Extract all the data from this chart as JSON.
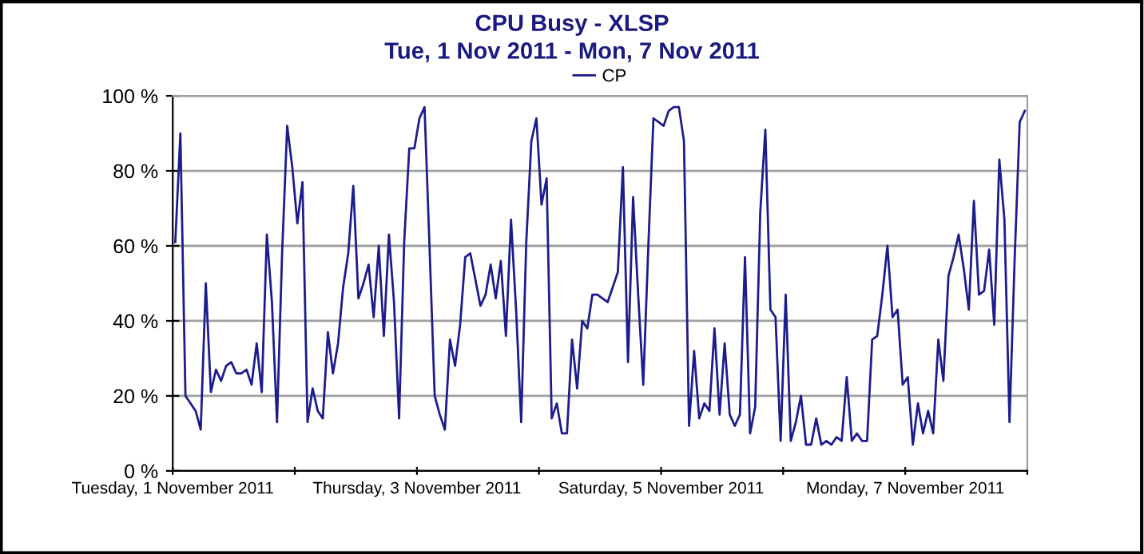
{
  "chart_data": {
    "type": "line",
    "title": "CPU Busy - XLSP",
    "subtitle": "Tue, 1 Nov 2011 - Mon, 7 Nov 2011",
    "x": [
      "2011-11-01T00:30",
      "2011-11-01T01:30",
      "2011-11-01T02:30",
      "2011-11-01T03:30",
      "2011-11-01T04:30",
      "2011-11-01T05:30",
      "2011-11-01T06:30",
      "2011-11-01T07:30",
      "2011-11-01T08:30",
      "2011-11-01T09:30",
      "2011-11-01T10:30",
      "2011-11-01T11:30",
      "2011-11-01T12:30",
      "2011-11-01T13:30",
      "2011-11-01T14:30",
      "2011-11-01T15:30",
      "2011-11-01T16:30",
      "2011-11-01T17:30",
      "2011-11-01T18:30",
      "2011-11-01T19:30",
      "2011-11-01T20:30",
      "2011-11-01T21:30",
      "2011-11-01T22:30",
      "2011-11-01T23:30",
      "2011-11-02T00:30",
      "2011-11-02T01:30",
      "2011-11-02T02:30",
      "2011-11-02T03:30",
      "2011-11-02T04:30",
      "2011-11-02T05:30",
      "2011-11-02T06:30",
      "2011-11-02T07:30",
      "2011-11-02T08:30",
      "2011-11-02T09:30",
      "2011-11-02T10:30",
      "2011-11-02T11:30",
      "2011-11-02T12:30",
      "2011-11-02T13:30",
      "2011-11-02T14:30",
      "2011-11-02T15:30",
      "2011-11-02T16:30",
      "2011-11-02T17:30",
      "2011-11-02T18:30",
      "2011-11-02T19:30",
      "2011-11-02T20:30",
      "2011-11-02T21:30",
      "2011-11-02T22:30",
      "2011-11-02T23:30",
      "2011-11-03T00:30",
      "2011-11-03T01:30",
      "2011-11-03T02:30",
      "2011-11-03T03:30",
      "2011-11-03T04:30",
      "2011-11-03T05:30",
      "2011-11-03T06:30",
      "2011-11-03T07:30",
      "2011-11-03T08:30",
      "2011-11-03T09:30",
      "2011-11-03T10:30",
      "2011-11-03T11:30",
      "2011-11-03T12:30",
      "2011-11-03T13:30",
      "2011-11-03T14:30",
      "2011-11-03T15:30",
      "2011-11-03T16:30",
      "2011-11-03T17:30",
      "2011-11-03T18:30",
      "2011-11-03T19:30",
      "2011-11-03T20:30",
      "2011-11-03T21:30",
      "2011-11-03T22:30",
      "2011-11-03T23:30",
      "2011-11-04T00:30",
      "2011-11-04T01:30",
      "2011-11-04T02:30",
      "2011-11-04T03:30",
      "2011-11-04T04:30",
      "2011-11-04T05:30",
      "2011-11-04T06:30",
      "2011-11-04T07:30",
      "2011-11-04T08:30",
      "2011-11-04T09:30",
      "2011-11-04T10:30",
      "2011-11-04T11:30",
      "2011-11-04T12:30",
      "2011-11-04T13:30",
      "2011-11-04T14:30",
      "2011-11-04T15:30",
      "2011-11-04T16:30",
      "2011-11-04T17:30",
      "2011-11-04T18:30",
      "2011-11-04T19:30",
      "2011-11-04T20:30",
      "2011-11-04T21:30",
      "2011-11-04T22:30",
      "2011-11-04T23:30",
      "2011-11-05T00:30",
      "2011-11-05T01:30",
      "2011-11-05T02:30",
      "2011-11-05T03:30",
      "2011-11-05T04:30",
      "2011-11-05T05:30",
      "2011-11-05T06:30",
      "2011-11-05T07:30",
      "2011-11-05T08:30",
      "2011-11-05T09:30",
      "2011-11-05T10:30",
      "2011-11-05T11:30",
      "2011-11-05T12:30",
      "2011-11-05T13:30",
      "2011-11-05T14:30",
      "2011-11-05T15:30",
      "2011-11-05T16:30",
      "2011-11-05T17:30",
      "2011-11-05T18:30",
      "2011-11-05T19:30",
      "2011-11-05T20:30",
      "2011-11-05T21:30",
      "2011-11-05T22:30",
      "2011-11-05T23:30",
      "2011-11-06T00:30",
      "2011-11-06T01:30",
      "2011-11-06T02:30",
      "2011-11-06T03:30",
      "2011-11-06T04:30",
      "2011-11-06T05:30",
      "2011-11-06T06:30",
      "2011-11-06T07:30",
      "2011-11-06T08:30",
      "2011-11-06T09:30",
      "2011-11-06T10:30",
      "2011-11-06T11:30",
      "2011-11-06T12:30",
      "2011-11-06T13:30",
      "2011-11-06T14:30",
      "2011-11-06T15:30",
      "2011-11-06T16:30",
      "2011-11-06T17:30",
      "2011-11-06T18:30",
      "2011-11-06T19:30",
      "2011-11-06T20:30",
      "2011-11-06T21:30",
      "2011-11-06T22:30",
      "2011-11-06T23:30",
      "2011-11-07T00:30",
      "2011-11-07T01:30",
      "2011-11-07T02:30",
      "2011-11-07T03:30",
      "2011-11-07T04:30",
      "2011-11-07T05:30",
      "2011-11-07T06:30",
      "2011-11-07T07:30",
      "2011-11-07T08:30",
      "2011-11-07T09:30",
      "2011-11-07T10:30",
      "2011-11-07T11:30",
      "2011-11-07T12:30",
      "2011-11-07T13:30",
      "2011-11-07T14:30",
      "2011-11-07T15:30",
      "2011-11-07T16:30",
      "2011-11-07T17:30",
      "2011-11-07T18:30",
      "2011-11-07T19:30",
      "2011-11-07T20:30",
      "2011-11-07T21:30",
      "2011-11-07T22:30",
      "2011-11-07T23:30"
    ],
    "series": [
      {
        "name": "CP",
        "color": "#1c1c8c",
        "values": [
          61,
          90,
          20,
          18,
          16,
          11,
          50,
          21,
          27,
          24,
          28,
          29,
          26,
          26,
          27,
          23,
          34,
          21,
          63,
          45,
          13,
          58,
          92,
          81,
          66,
          77,
          13,
          22,
          16,
          14,
          37,
          26,
          34,
          49,
          58,
          76,
          46,
          50,
          55,
          41,
          60,
          36,
          63,
          45,
          14,
          61,
          86,
          86,
          94,
          97,
          59,
          20,
          15,
          11,
          35,
          28,
          39,
          57,
          58,
          51,
          44,
          47,
          55,
          46,
          56,
          36,
          67,
          43,
          13,
          61,
          88,
          94,
          71,
          78,
          14,
          18,
          10,
          10,
          35,
          22,
          40,
          38,
          47,
          47,
          46,
          45,
          49,
          53,
          81,
          29,
          73,
          47,
          23,
          60,
          94,
          93,
          92,
          96,
          97,
          97,
          88,
          12,
          32,
          14,
          18,
          16,
          38,
          15,
          34,
          15,
          12,
          15,
          57,
          10,
          17,
          69,
          91,
          43,
          41,
          8,
          47,
          8,
          13,
          20,
          7,
          7,
          14,
          7,
          8,
          7,
          9,
          8,
          25,
          8,
          10,
          8,
          8,
          35,
          36,
          47,
          60,
          41,
          43,
          23,
          25,
          7,
          18,
          10,
          16,
          10,
          35,
          24,
          52,
          57,
          63,
          54,
          43,
          72,
          47,
          48,
          59,
          39,
          83,
          67,
          13,
          56,
          93,
          96
        ]
      }
    ],
    "xlim": [
      "2011-11-01",
      "2011-11-08"
    ],
    "xticks": [
      {
        "value": "2011-11-01",
        "label": "Tuesday, 1 November 2011"
      },
      {
        "value": "2011-11-02",
        "label": null
      },
      {
        "value": "2011-11-03",
        "label": "Thursday, 3 November 2011"
      },
      {
        "value": "2011-11-04",
        "label": null
      },
      {
        "value": "2011-11-05",
        "label": "Saturday, 5 November 2011"
      },
      {
        "value": "2011-11-06",
        "label": null
      },
      {
        "value": "2011-11-07",
        "label": "Monday, 7 November 2011"
      },
      {
        "value": "2011-11-08",
        "label": null
      }
    ],
    "ylim": [
      0,
      100
    ],
    "yticks": [
      {
        "value": 0,
        "label": "0 %"
      },
      {
        "value": 20,
        "label": "20 %"
      },
      {
        "value": 40,
        "label": "40 %"
      },
      {
        "value": 60,
        "label": "60 %"
      },
      {
        "value": 80,
        "label": "80 %"
      },
      {
        "value": 100,
        "label": "100 %"
      }
    ],
    "grid": "y",
    "legend": "top",
    "marker": "none",
    "line_style": "solid"
  }
}
